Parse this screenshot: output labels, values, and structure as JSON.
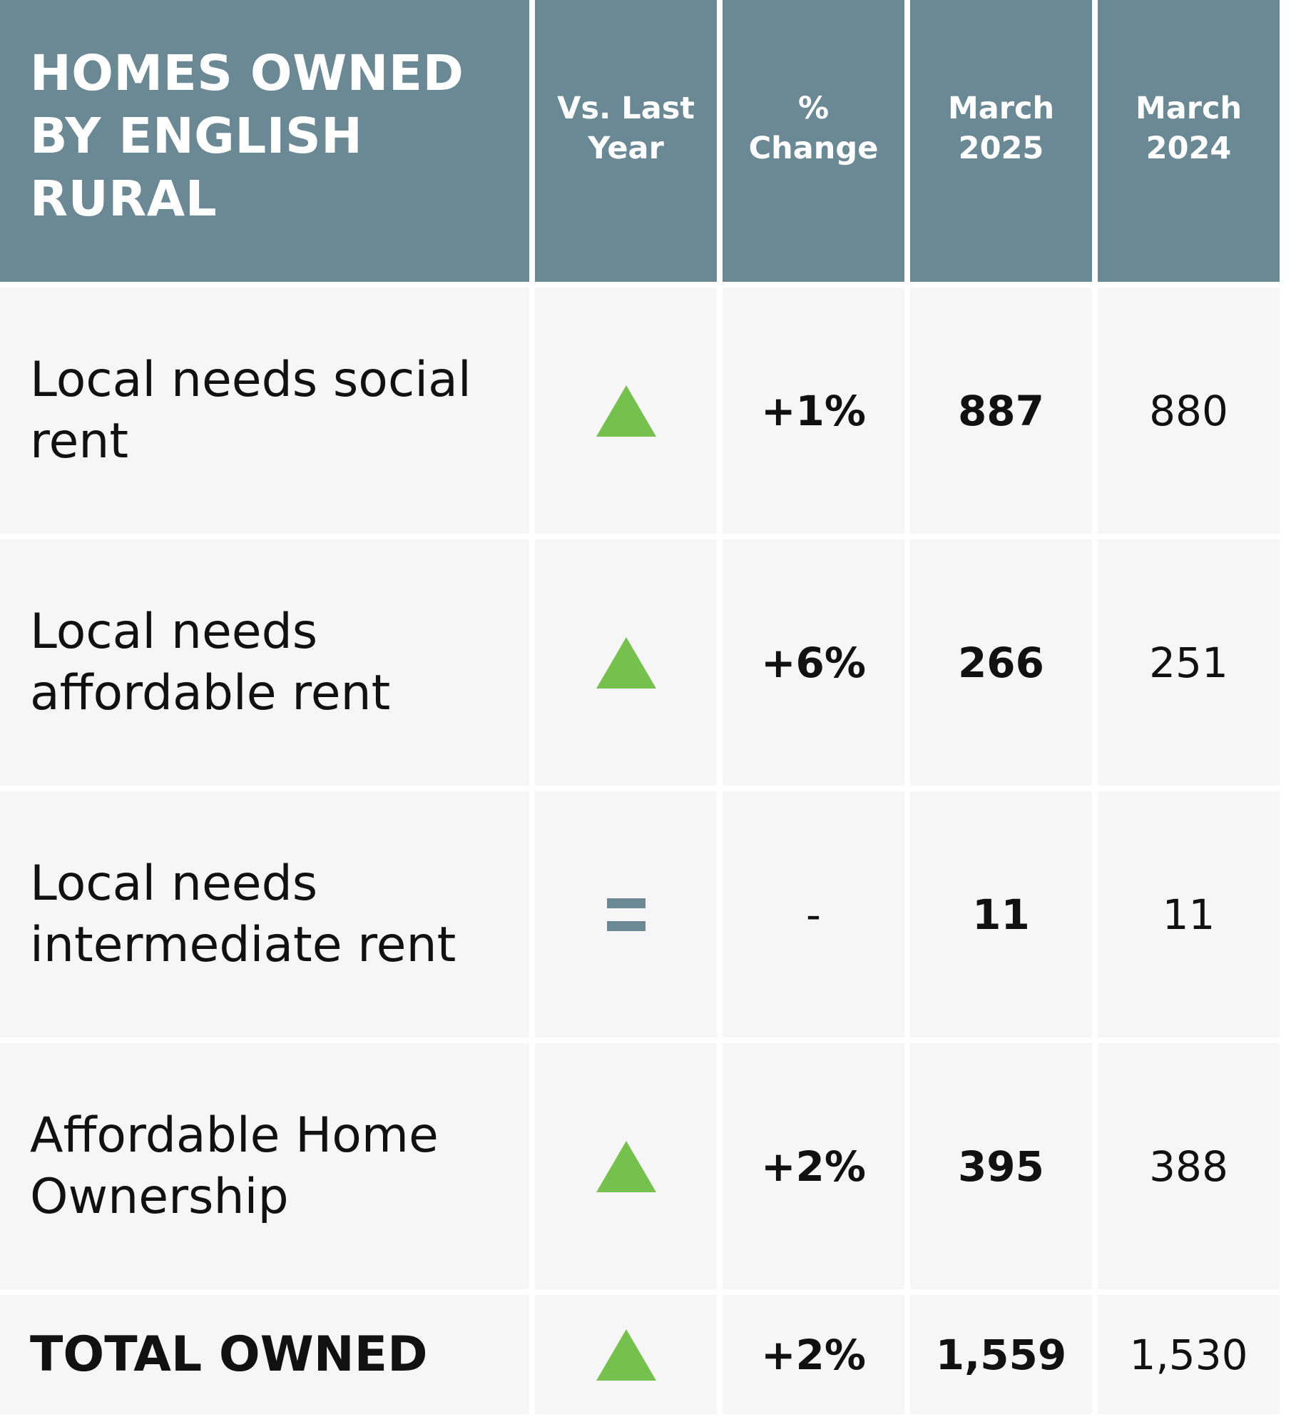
{
  "header": {
    "title": "HOMES OWNED BY ENGLISH RURAL",
    "columns": [
      "Vs. Last Year",
      "% Change",
      "March 2025",
      "March 2024"
    ]
  },
  "colors": {
    "header_bg": "#6b8995",
    "cell_bg": "#f6f6f6",
    "up_triangle": "#76c04d",
    "equal_icon": "#6b8995"
  },
  "rows": [
    {
      "label": "Local needs social rent",
      "trend": "up-triangle-icon",
      "pct_change": "+1%",
      "march_2025": "887",
      "march_2024": "880"
    },
    {
      "label": "Local needs affordable rent",
      "trend": "up-triangle-icon",
      "pct_change": "+6%",
      "march_2025": "266",
      "march_2024": "251"
    },
    {
      "label": "Local needs intermediate rent",
      "trend": "equals-icon",
      "pct_change": "-",
      "march_2025": "11",
      "march_2024": "11"
    },
    {
      "label": "Affordable Home Ownership",
      "trend": "up-triangle-icon",
      "pct_change": "+2%",
      "march_2025": "395",
      "march_2024": "388"
    }
  ],
  "total": {
    "label": "TOTAL OWNED",
    "trend": "up-triangle-icon",
    "pct_change": "+2%",
    "march_2025": "1,559",
    "march_2024": "1,530"
  }
}
